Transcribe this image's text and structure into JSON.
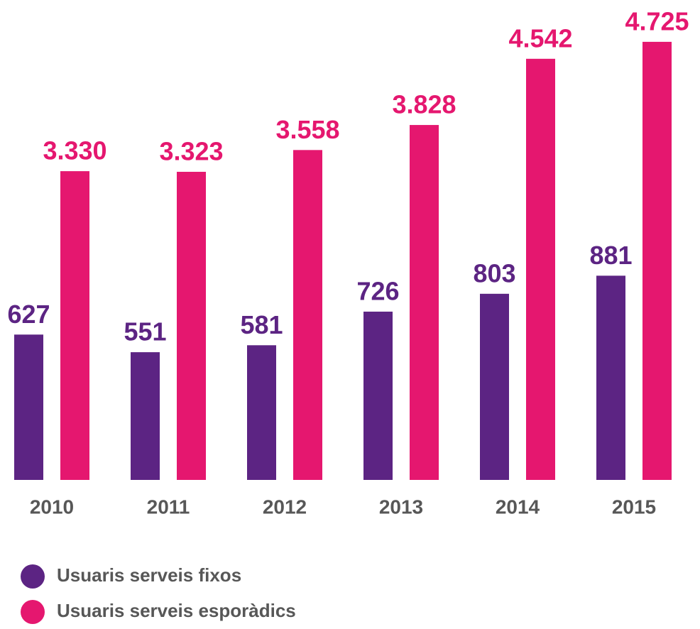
{
  "chart_data": {
    "type": "bar",
    "categories": [
      "2010",
      "2011",
      "2012",
      "2013",
      "2014",
      "2015"
    ],
    "series": [
      {
        "name": "Usuaris serveis fixos",
        "color": "#5c2483",
        "axis": "y2",
        "values": [
          627,
          551,
          581,
          726,
          803,
          881
        ]
      },
      {
        "name": "Usuaris serveis esporàdics",
        "color": "#e5176f",
        "values": [
          3330,
          3323,
          3558,
          3828,
          4542,
          4725
        ],
        "value_labels": [
          "3.330",
          "3.323",
          "3.558",
          "3.828",
          "4.542",
          "4.725"
        ]
      }
    ],
    "ylim": [
      0,
      5000
    ],
    "y2lim": [
      0,
      2000
    ],
    "legend": "bottom-left"
  }
}
